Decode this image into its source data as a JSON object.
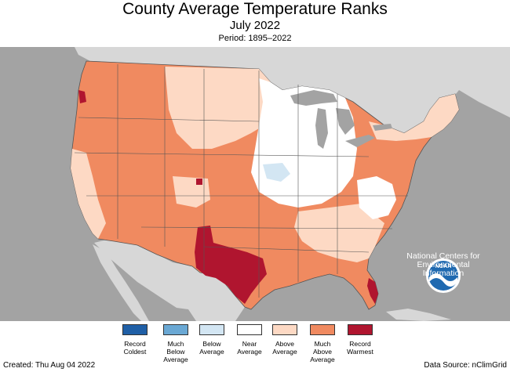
{
  "header": {
    "title": "County Average Temperature Ranks",
    "subtitle": "July 2022",
    "period": "Period: 1895–2022"
  },
  "legend": [
    {
      "label": "Record\nColdest",
      "color": "#1f5fa6"
    },
    {
      "label": "Much\nBelow\nAverage",
      "color": "#6aa8d4"
    },
    {
      "label": "Below\nAverage",
      "color": "#d3e6f3"
    },
    {
      "label": "Near\nAverage",
      "color": "#ffffff"
    },
    {
      "label": "Above\nAverage",
      "color": "#fdd9c4"
    },
    {
      "label": "Much\nAbove\nAverage",
      "color": "#f08a60"
    },
    {
      "label": "Record\nWarmest",
      "color": "#b0152f"
    }
  ],
  "logo": {
    "text": "NOAA",
    "caption": "National Centers for\nEnvironmental\nInformation"
  },
  "footer": {
    "created": "Created: Thu Aug 04 2022",
    "source": "Data Source: nClimGrid"
  },
  "colors": {
    "ocean": "#a3a3a3",
    "land_outside": "#d7d7d7",
    "lakes": "#a3a3a3"
  }
}
